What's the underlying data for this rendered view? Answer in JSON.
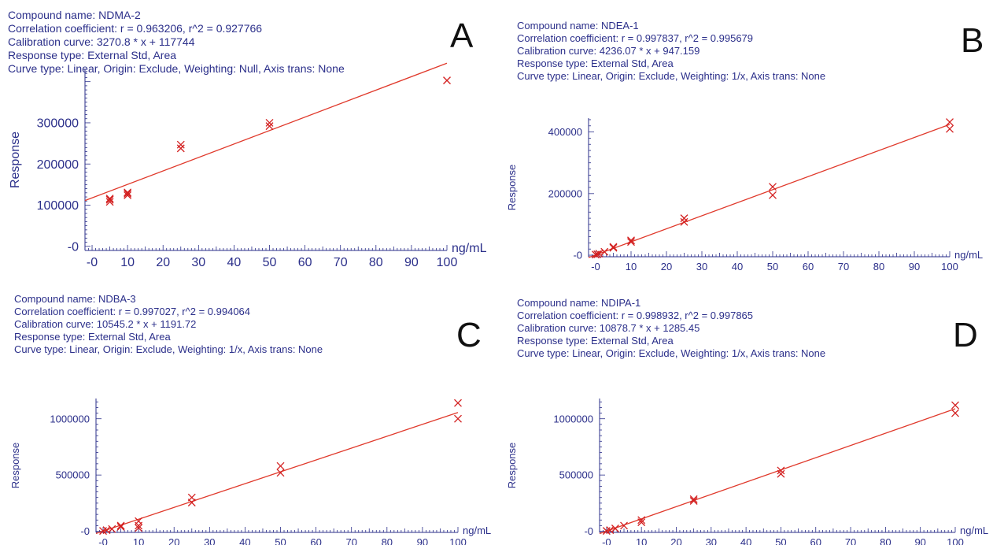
{
  "chart_data": [
    {
      "id": "A",
      "type": "scatter",
      "panel_letter": "A",
      "compound_label": "Compound name: NDMA-2",
      "correlation_label": "Correlation coefficient: r = 0.963206, r^2 = 0.927766",
      "calibration_label": "Calibration curve: 3270.8 * x + 117744",
      "response_type_label": "Response type: External Std, Area",
      "curve_type_label": "Curve type: Linear, Origin: Exclude, Weighting: Null, Axis trans: None",
      "xlabel": "ng/mL",
      "ylabel": "Response",
      "xlim": [
        -2,
        100
      ],
      "ylim": [
        -10000,
        430000
      ],
      "x_ticks": [
        0,
        10,
        20,
        30,
        40,
        50,
        60,
        70,
        80,
        90,
        100
      ],
      "x_tick_labels": [
        "-0",
        "10",
        "20",
        "30",
        "40",
        "50",
        "60",
        "70",
        "80",
        "90",
        "100"
      ],
      "y_ticks": [
        0,
        100000,
        200000,
        300000
      ],
      "y_tick_labels": [
        "-0",
        "100000",
        "200000",
        "300000"
      ],
      "fit": {
        "slope": 3270.8,
        "intercept": 117744
      },
      "points": [
        {
          "x": 5,
          "y": 108000
        },
        {
          "x": 5,
          "y": 116000
        },
        {
          "x": 5,
          "y": 113000
        },
        {
          "x": 10,
          "y": 124000
        },
        {
          "x": 10,
          "y": 131000
        },
        {
          "x": 10,
          "y": 128000
        },
        {
          "x": 25,
          "y": 238000
        },
        {
          "x": 25,
          "y": 247000
        },
        {
          "x": 50,
          "y": 292000
        },
        {
          "x": 50,
          "y": 300000
        },
        {
          "x": 100,
          "y": 403000
        }
      ],
      "colors": {
        "text": "#2b2f8a",
        "line": "#e0392b",
        "point": "#d32020"
      }
    },
    {
      "id": "B",
      "type": "scatter",
      "panel_letter": "B",
      "compound_label": "Compound name: NDEA-1",
      "correlation_label": "Correlation coefficient: r = 0.997837, r^2 = 0.995679",
      "calibration_label": "Calibration curve: 4236.07 * x + 947.159",
      "response_type_label": "Response type: External Std, Area",
      "curve_type_label": "Curve type: Linear, Origin: Exclude, Weighting: 1/x, Axis trans: None",
      "xlabel": "ng/mL",
      "ylabel": "Response",
      "xlim": [
        -2,
        100
      ],
      "ylim": [
        -5000,
        445000
      ],
      "x_ticks": [
        0,
        10,
        20,
        30,
        40,
        50,
        60,
        70,
        80,
        90,
        100
      ],
      "x_tick_labels": [
        "-0",
        "10",
        "20",
        "30",
        "40",
        "50",
        "60",
        "70",
        "80",
        "90",
        "100"
      ],
      "y_ticks": [
        0,
        200000,
        400000
      ],
      "y_tick_labels": [
        "-0",
        "200000",
        "400000"
      ],
      "fit": {
        "slope": 4236.07,
        "intercept": 947.159
      },
      "points": [
        {
          "x": 0,
          "y": 2000
        },
        {
          "x": 0.5,
          "y": 3000
        },
        {
          "x": 1,
          "y": 5000
        },
        {
          "x": 2.5,
          "y": 11000
        },
        {
          "x": 5,
          "y": 24000
        },
        {
          "x": 5,
          "y": 27000
        },
        {
          "x": 10,
          "y": 43000
        },
        {
          "x": 10,
          "y": 48000
        },
        {
          "x": 25,
          "y": 108000
        },
        {
          "x": 25,
          "y": 120000
        },
        {
          "x": 50,
          "y": 195000
        },
        {
          "x": 50,
          "y": 222000
        },
        {
          "x": 100,
          "y": 410000
        },
        {
          "x": 100,
          "y": 432000
        }
      ],
      "colors": {
        "text": "#2b2f8a",
        "line": "#e0392b",
        "point": "#d32020"
      }
    },
    {
      "id": "C",
      "type": "scatter",
      "panel_letter": "C",
      "compound_label": "Compound name: NDBA-3",
      "correlation_label": "Correlation coefficient: r = 0.997027, r^2 = 0.994064",
      "calibration_label": "Calibration curve: 10545.2 * x + 1191.72",
      "response_type_label": "Response type: External Std, Area",
      "curve_type_label": "Curve type: Linear, Origin: Exclude, Weighting: 1/x, Axis trans: None",
      "xlabel": "ng/mL",
      "ylabel": "Response",
      "xlim": [
        -2,
        100
      ],
      "ylim": [
        -10000,
        1180000
      ],
      "x_ticks": [
        0,
        10,
        20,
        30,
        40,
        50,
        60,
        70,
        80,
        90,
        100
      ],
      "x_tick_labels": [
        "-0",
        "10",
        "20",
        "30",
        "40",
        "50",
        "60",
        "70",
        "80",
        "90",
        "100"
      ],
      "y_ticks": [
        0,
        500000,
        1000000
      ],
      "y_tick_labels": [
        "-0",
        "500000",
        "1000000"
      ],
      "fit": {
        "slope": 10545.2,
        "intercept": 1191.72
      },
      "points": [
        {
          "x": 0,
          "y": 3000
        },
        {
          "x": 1,
          "y": 10000
        },
        {
          "x": 2.5,
          "y": 20000
        },
        {
          "x": 5,
          "y": 40000
        },
        {
          "x": 5,
          "y": 50000
        },
        {
          "x": 10,
          "y": 30000
        },
        {
          "x": 10,
          "y": 50000
        },
        {
          "x": 10,
          "y": 90000
        },
        {
          "x": 25,
          "y": 255000
        },
        {
          "x": 25,
          "y": 300000
        },
        {
          "x": 50,
          "y": 520000
        },
        {
          "x": 50,
          "y": 580000
        },
        {
          "x": 100,
          "y": 1000000
        },
        {
          "x": 100,
          "y": 1140000
        }
      ],
      "colors": {
        "text": "#2b2f8a",
        "line": "#e0392b",
        "point": "#d32020"
      }
    },
    {
      "id": "D",
      "type": "scatter",
      "panel_letter": "D",
      "compound_label": "Compound name: NDIPA-1",
      "correlation_label": "Correlation coefficient: r = 0.998932, r^2 = 0.997865",
      "calibration_label": "Calibration curve: 10878.7 * x + 1285.45",
      "response_type_label": "Response type: External Std, Area",
      "curve_type_label": "Curve type: Linear, Origin: Exclude, Weighting: 1/x, Axis trans: None",
      "xlabel": "ng/mL",
      "ylabel": "Response",
      "xlim": [
        -2,
        100
      ],
      "ylim": [
        -10000,
        1180000
      ],
      "x_ticks": [
        0,
        10,
        20,
        30,
        40,
        50,
        60,
        70,
        80,
        90,
        100
      ],
      "x_tick_labels": [
        "-0",
        "10",
        "20",
        "30",
        "40",
        "50",
        "60",
        "70",
        "80",
        "90",
        "100"
      ],
      "y_ticks": [
        0,
        500000,
        1000000
      ],
      "y_tick_labels": [
        "-0",
        "500000",
        "1000000"
      ],
      "fit": {
        "slope": 10878.7,
        "intercept": 1285.45
      },
      "points": [
        {
          "x": 0,
          "y": 3000
        },
        {
          "x": 1,
          "y": 10000
        },
        {
          "x": 2.5,
          "y": 25000
        },
        {
          "x": 5,
          "y": 50000
        },
        {
          "x": 10,
          "y": 80000
        },
        {
          "x": 10,
          "y": 100000
        },
        {
          "x": 25,
          "y": 270000
        },
        {
          "x": 25,
          "y": 285000
        },
        {
          "x": 50,
          "y": 510000
        },
        {
          "x": 50,
          "y": 540000
        },
        {
          "x": 100,
          "y": 1050000
        },
        {
          "x": 100,
          "y": 1120000
        }
      ],
      "colors": {
        "text": "#2b2f8a",
        "line": "#e0392b",
        "point": "#d32020"
      }
    }
  ]
}
